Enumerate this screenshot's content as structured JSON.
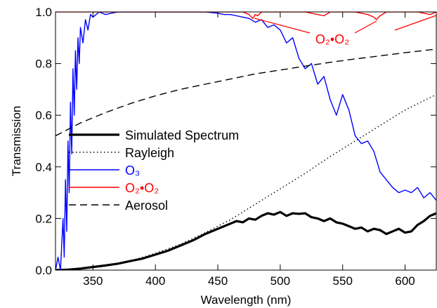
{
  "chart_data": {
    "type": "line",
    "xlabel": "Wavelength (nm)",
    "ylabel": "Transmission",
    "xlim": [
      320,
      625
    ],
    "ylim": [
      0,
      1.0
    ],
    "xticks": [
      350,
      400,
      450,
      500,
      550,
      600
    ],
    "xtick_labels": [
      "350",
      "400",
      "450",
      "500",
      "550",
      "600"
    ],
    "yticks": [
      0.0,
      0.2,
      0.4,
      0.6,
      0.8,
      1.0
    ],
    "ytick_labels": [
      "0.0",
      "0.2",
      "0.4",
      "0.6",
      "0.8",
      "1.0"
    ],
    "grid": false,
    "legend_position": "center-left",
    "annotation": {
      "text": "O2•O2",
      "display": "O₂•O₂",
      "color": "#ff0000"
    },
    "series": [
      {
        "name": "Simulated Spectrum",
        "label_display": "Simulated Spectrum",
        "color": "#000000",
        "style": "solid-thick",
        "x": [
          320,
          330,
          340,
          350,
          360,
          370,
          380,
          390,
          400,
          410,
          420,
          430,
          440,
          450,
          460,
          465,
          470,
          475,
          480,
          485,
          490,
          495,
          500,
          505,
          510,
          515,
          520,
          525,
          530,
          535,
          540,
          545,
          550,
          555,
          560,
          565,
          570,
          575,
          580,
          585,
          590,
          595,
          600,
          605,
          610,
          615,
          620,
          625
        ],
        "y": [
          0.0,
          0.002,
          0.006,
          0.012,
          0.018,
          0.025,
          0.035,
          0.045,
          0.06,
          0.075,
          0.095,
          0.115,
          0.14,
          0.16,
          0.18,
          0.19,
          0.185,
          0.2,
          0.195,
          0.21,
          0.22,
          0.215,
          0.225,
          0.21,
          0.22,
          0.218,
          0.22,
          0.205,
          0.2,
          0.19,
          0.2,
          0.185,
          0.18,
          0.17,
          0.16,
          0.165,
          0.15,
          0.16,
          0.155,
          0.14,
          0.15,
          0.16,
          0.145,
          0.15,
          0.175,
          0.19,
          0.21,
          0.22
        ]
      },
      {
        "name": "Rayleigh",
        "label_display": "Rayleigh",
        "color": "#000000",
        "style": "dotted",
        "x": [
          320,
          340,
          360,
          380,
          400,
          420,
          440,
          460,
          480,
          500,
          520,
          540,
          560,
          580,
          600,
          625
        ],
        "y": [
          0.0,
          0.005,
          0.015,
          0.035,
          0.065,
          0.1,
          0.145,
          0.195,
          0.255,
          0.315,
          0.375,
          0.44,
          0.5,
          0.56,
          0.62,
          0.68
        ]
      },
      {
        "name": "O3",
        "label_display": "O₃",
        "color": "#0000ff",
        "style": "solid",
        "x": [
          320,
          322,
          324,
          326,
          327,
          328,
          329,
          330,
          331,
          332,
          333,
          334,
          335,
          336,
          337,
          338,
          339,
          340,
          342,
          344,
          346,
          348,
          350,
          355,
          360,
          370,
          380,
          390,
          400,
          410,
          420,
          430,
          440,
          450,
          455,
          460,
          465,
          470,
          475,
          480,
          485,
          490,
          495,
          500,
          505,
          510,
          515,
          520,
          525,
          530,
          535,
          540,
          545,
          550,
          555,
          560,
          565,
          570,
          575,
          580,
          585,
          590,
          595,
          600,
          605,
          610,
          615,
          620,
          625
        ],
        "y": [
          0.0,
          0.05,
          0.0,
          0.2,
          0.05,
          0.35,
          0.15,
          0.5,
          0.3,
          0.65,
          0.45,
          0.78,
          0.6,
          0.85,
          0.7,
          0.9,
          0.8,
          0.94,
          0.88,
          0.97,
          0.93,
          0.99,
          0.98,
          1.0,
          0.99,
          1.0,
          1.0,
          1.0,
          1.0,
          1.0,
          1.0,
          1.0,
          1.0,
          0.995,
          0.99,
          0.99,
          0.985,
          0.98,
          0.975,
          0.96,
          0.97,
          0.94,
          0.95,
          0.93,
          0.88,
          0.9,
          0.82,
          0.78,
          0.8,
          0.72,
          0.75,
          0.66,
          0.6,
          0.68,
          0.62,
          0.52,
          0.49,
          0.5,
          0.46,
          0.38,
          0.35,
          0.32,
          0.3,
          0.31,
          0.3,
          0.32,
          0.28,
          0.3,
          0.27
        ]
      },
      {
        "name": "O2•O2",
        "label_display": "O₂•O₂",
        "color": "#ff0000",
        "style": "solid",
        "x": [
          320,
          470,
          475,
          478,
          480,
          482,
          485,
          520,
          530,
          535,
          540,
          560,
          570,
          575,
          577,
          580,
          585,
          610,
          620,
          625
        ],
        "y": [
          1.0,
          1.0,
          0.99,
          0.975,
          0.99,
          0.985,
          1.0,
          1.0,
          0.99,
          0.985,
          1.0,
          1.0,
          0.99,
          0.98,
          0.97,
          0.985,
          1.0,
          1.0,
          0.99,
          1.0
        ]
      },
      {
        "name": "Aerosol",
        "label_display": "Aerosol",
        "color": "#000000",
        "style": "dashed",
        "x": [
          320,
          340,
          360,
          380,
          400,
          420,
          440,
          460,
          480,
          500,
          520,
          540,
          560,
          580,
          600,
          625
        ],
        "y": [
          0.52,
          0.57,
          0.61,
          0.645,
          0.675,
          0.7,
          0.72,
          0.74,
          0.76,
          0.775,
          0.79,
          0.805,
          0.818,
          0.83,
          0.842,
          0.856
        ]
      }
    ]
  }
}
